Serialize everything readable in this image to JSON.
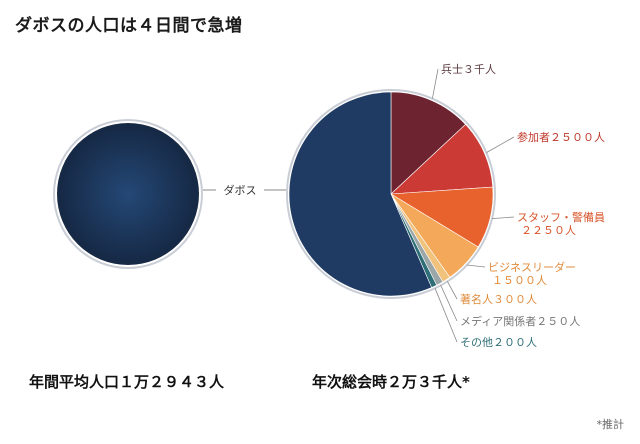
{
  "title": "ダボスの人口は４日間で急増",
  "center_label": "ダボス",
  "left_caption": "年間平均人口１万２９４３人",
  "right_caption": "年次総会時２万３千人*",
  "footnote": "*推計",
  "chart_data": [
    {
      "type": "pie",
      "name": "年間平均人口",
      "total": 12943,
      "slices": [
        {
          "label": "ダボス",
          "value": 12943,
          "color": "#1f3b63"
        }
      ]
    },
    {
      "type": "pie",
      "name": "年次総会時",
      "total": 23000,
      "slices": [
        {
          "label": "兵士３千人",
          "value": 3000,
          "color": "#6e2430"
        },
        {
          "label": "参加者２５００人",
          "value": 2500,
          "color": "#cc3a36"
        },
        {
          "label": "スタッフ・警備員\n２２５０人",
          "value": 2250,
          "color": "#e8622e"
        },
        {
          "label": "ビジネスリーダー\n１５００人",
          "value": 1500,
          "color": "#f4a85a"
        },
        {
          "label": "著名人３００人",
          "value": 300,
          "color": "#f0c27c"
        },
        {
          "label": "メディア関係者２５０人",
          "value": 250,
          "color": "#9aa6a7"
        },
        {
          "label": "その他２００人",
          "value": 200,
          "color": "#2f6f78"
        },
        {
          "label": "ダボス",
          "value": 13000,
          "color": "#1f3b63"
        }
      ],
      "label_colors": [
        "#5a3a40",
        "#c0392b",
        "#d8552a",
        "#e08a3a",
        "#e08a3a",
        "#777777",
        "#2f6f78",
        "#333333"
      ]
    }
  ]
}
